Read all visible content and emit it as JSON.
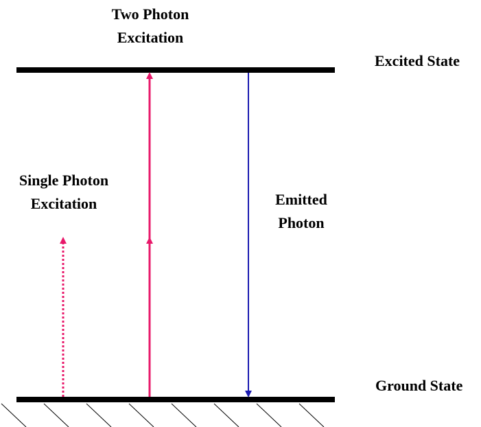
{
  "labels": {
    "two_photon": [
      "Two Photon",
      "Excitation"
    ],
    "excited": "Excited State",
    "single_photon": [
      "Single Photon",
      "Excitation"
    ],
    "emitted": [
      "Emitted",
      "Photon"
    ],
    "ground": "Ground State"
  }
}
